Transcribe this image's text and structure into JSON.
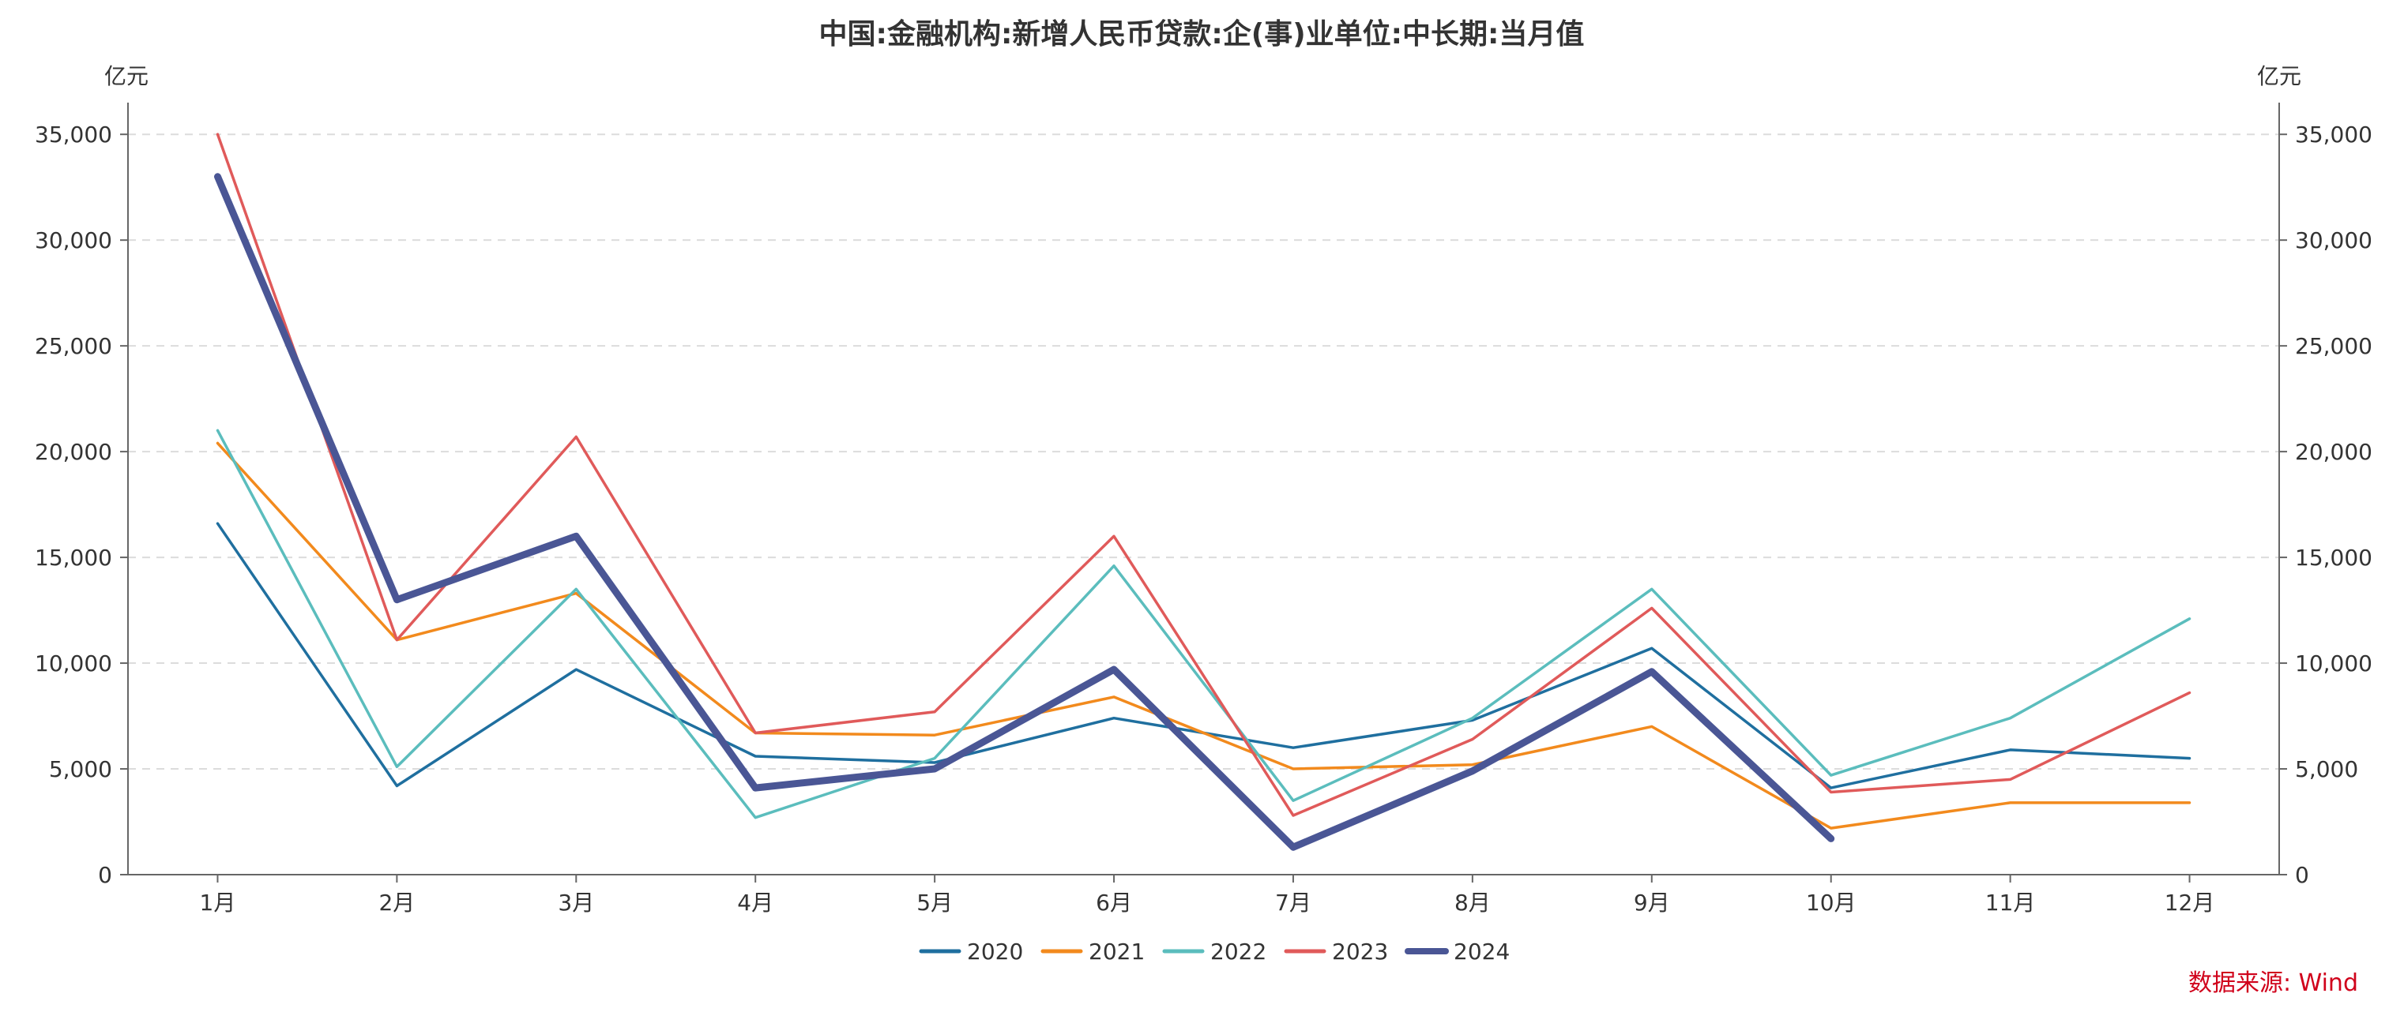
{
  "chart_data": {
    "type": "line",
    "title": "中国:金融机构:新增人民币贷款:企(事)业单位:中长期:当月值",
    "ylabel_left": "亿元",
    "ylabel_right": "亿元",
    "categories": [
      "1月",
      "2月",
      "3月",
      "4月",
      "5月",
      "6月",
      "7月",
      "8月",
      "9月",
      "10月",
      "11月",
      "12月"
    ],
    "ylim": [
      0,
      36500
    ],
    "yticks": [
      0,
      5000,
      10000,
      15000,
      20000,
      25000,
      30000,
      35000
    ],
    "ytick_labels": [
      "0",
      "5,000",
      "10,000",
      "15,000",
      "20,000",
      "25,000",
      "30,000",
      "35,000"
    ],
    "grid": true,
    "legend_position": "bottom-center",
    "series": [
      {
        "name": "2020",
        "color": "#1f6f9f",
        "width": 3.5,
        "values": [
          16600,
          4200,
          9700,
          5600,
          5300,
          7400,
          6000,
          7300,
          10700,
          4100,
          5900,
          5500
        ]
      },
      {
        "name": "2021",
        "color": "#f28a1d",
        "width": 3.5,
        "values": [
          20400,
          11100,
          13300,
          6700,
          6600,
          8400,
          5000,
          5200,
          7000,
          2200,
          3400,
          3400
        ]
      },
      {
        "name": "2022",
        "color": "#5bbdbd",
        "width": 3.5,
        "values": [
          21000,
          5100,
          13500,
          2700,
          5500,
          14600,
          3500,
          7400,
          13500,
          4700,
          7400,
          12100
        ]
      },
      {
        "name": "2023",
        "color": "#e05a5a",
        "width": 3.5,
        "values": [
          35000,
          11100,
          20700,
          6700,
          7700,
          16000,
          2800,
          6400,
          12600,
          3900,
          4500,
          8600
        ]
      },
      {
        "name": "2024",
        "color": "#4a5695",
        "width": 9,
        "values": [
          33000,
          13000,
          16000,
          4100,
          5000,
          9700,
          1300,
          4900,
          9600,
          1700,
          null,
          null
        ]
      }
    ],
    "source": "数据来源: Wind"
  }
}
